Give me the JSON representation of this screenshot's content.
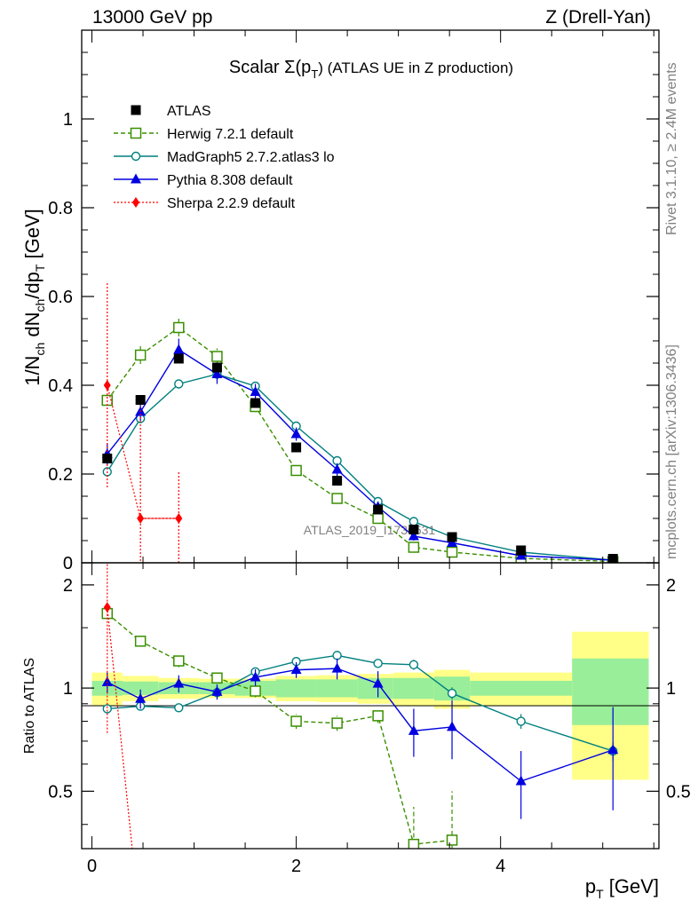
{
  "header": {
    "left": "13000 GeV pp",
    "right": "Z (Drell-Yan)"
  },
  "side_labels": {
    "rivet": "Rivet 3.1.10, ≥ 2.4M events",
    "mcplots": "mcplots.cern.ch [arXiv:1306.3436]"
  },
  "colors": {
    "ATLAS": "#000000",
    "Herwig": "#3a8f00",
    "MadGraph": "#00807f",
    "Pythia": "#0000e0",
    "Sherpa": "#ff0000",
    "band_inner": "#99ee99",
    "band_outer": "#ffff88"
  },
  "chart_data": [
    {
      "type": "line",
      "title_prefix": "Scalar Σ(p",
      "title_sub": "T",
      "title_suffix": ") (ATLAS UE in Z production)",
      "ylabel": "1/N_ch dN_ch/dp_T [GeV]",
      "watermark": "ATLAS_2019_I1736531",
      "xlim": [
        -0.1,
        5.55
      ],
      "ylim": [
        0,
        1.2
      ],
      "yticks": [
        0,
        0.2,
        0.4,
        0.6,
        0.8,
        1
      ],
      "ytick_labels": [
        "0",
        "0.2",
        "0.4",
        "0.6",
        "0.8",
        "1"
      ],
      "legend_position": "top-left",
      "series": [
        {
          "name": "ATLAS",
          "x": [
            0.15,
            0.475,
            0.85,
            1.225,
            1.6,
            2.0,
            2.4,
            2.8,
            3.15,
            3.525,
            4.2,
            5.1
          ],
          "y": [
            0.235,
            0.367,
            0.46,
            0.44,
            0.36,
            0.26,
            0.185,
            0.12,
            0.075,
            0.058,
            0.028,
            0.009
          ]
        },
        {
          "name": "Herwig 7.2.1 default",
          "x": [
            0.15,
            0.475,
            0.85,
            1.225,
            1.6,
            2.0,
            2.4,
            2.8,
            3.15,
            3.525,
            4.2,
            5.1
          ],
          "y": [
            0.366,
            0.468,
            0.53,
            0.465,
            0.352,
            0.208,
            0.145,
            0.1,
            0.035,
            0.024,
            0.01,
            0.003
          ],
          "err": [
            0.012,
            0.02,
            0.02,
            0.018,
            0.012,
            0.01,
            0.008,
            0.008,
            0.005,
            0.005,
            0.003,
            0.002
          ]
        },
        {
          "name": "MadGraph5 2.7.2.atlas3 lo",
          "x": [
            0.15,
            0.475,
            0.85,
            1.225,
            1.6,
            2.0,
            2.4,
            2.8,
            3.15,
            3.525,
            4.2,
            5.1
          ],
          "y": [
            0.205,
            0.325,
            0.403,
            0.425,
            0.398,
            0.308,
            0.23,
            0.138,
            0.093,
            0.058,
            0.024,
            0.006
          ],
          "err": [
            0.005,
            0.006,
            0.008,
            0.008,
            0.008,
            0.006,
            0.005,
            0.005,
            0.004,
            0.003,
            0.002,
            0.001
          ]
        },
        {
          "name": "Pythia 8.308 default",
          "x": [
            0.15,
            0.475,
            0.85,
            1.225,
            1.6,
            2.0,
            2.4,
            2.8,
            3.15,
            3.525,
            4.2,
            5.1
          ],
          "y": [
            0.245,
            0.34,
            0.48,
            0.425,
            0.385,
            0.29,
            0.21,
            0.126,
            0.06,
            0.045,
            0.016,
            0.006
          ],
          "err": [
            0.025,
            0.02,
            0.025,
            0.022,
            0.018,
            0.015,
            0.014,
            0.012,
            0.01,
            0.008,
            0.005,
            0.003
          ]
        },
        {
          "name": "Sherpa 2.2.9 default",
          "x": [
            0.15,
            0.475,
            0.85
          ],
          "y": [
            0.4,
            0.1,
            0.1
          ],
          "ylo": [
            0.17,
            -0.1,
            0.0
          ],
          "yhi": [
            0.63,
            0.35,
            0.205
          ]
        }
      ]
    },
    {
      "type": "line",
      "ylabel": "Ratio to ATLAS",
      "xlabel": "p_T [GeV]",
      "xlim": [
        -0.1,
        5.55
      ],
      "ylim": [
        0.34,
        2.32
      ],
      "xticks": [
        0,
        2,
        4
      ],
      "xtick_labels": [
        "0",
        "2",
        "4"
      ],
      "yticks": [
        0.5,
        1,
        2
      ],
      "ytick_labels": [
        "0.5",
        "1",
        "2"
      ],
      "bins": [
        [
          0.0,
          0.3
        ],
        [
          0.3,
          0.65
        ],
        [
          0.65,
          1.05
        ],
        [
          1.05,
          1.4
        ],
        [
          1.4,
          1.8
        ],
        [
          1.8,
          2.2
        ],
        [
          2.2,
          2.6
        ],
        [
          2.6,
          2.95
        ],
        [
          2.95,
          3.35
        ],
        [
          3.35,
          3.7
        ],
        [
          3.7,
          4.7
        ],
        [
          4.7,
          5.45
        ]
      ],
      "band_inner": [
        0.05,
        0.045,
        0.04,
        0.04,
        0.05,
        0.06,
        0.06,
        0.07,
        0.07,
        0.08,
        0.05,
        0.22
      ],
      "band_outer": [
        0.11,
        0.085,
        0.07,
        0.065,
        0.065,
        0.085,
        0.09,
        0.1,
        0.11,
        0.13,
        0.11,
        0.46
      ],
      "series": [
        {
          "name": "Herwig 7.2.1 default",
          "x": [
            0.15,
            0.475,
            0.85,
            1.225,
            1.6,
            2.0,
            2.4,
            2.8,
            3.15,
            3.525
          ],
          "y": [
            1.65,
            1.37,
            1.2,
            1.07,
            0.98,
            0.8,
            0.79,
            0.83,
            0.35,
            0.36
          ],
          "err": [
            0.05,
            0.05,
            0.05,
            0.04,
            0.04,
            0.04,
            0.04,
            0.04,
            0.1,
            0.14
          ]
        },
        {
          "name": "MadGraph5 2.7.2.atlas3 lo",
          "x": [
            0.15,
            0.475,
            0.85,
            1.225,
            1.6,
            2.0,
            2.4,
            2.8,
            3.15,
            3.525,
            4.2,
            5.1
          ],
          "y": [
            0.87,
            0.885,
            0.876,
            0.97,
            1.115,
            1.195,
            1.245,
            1.18,
            1.17,
            0.965,
            0.8,
            0.655
          ],
          "err": [
            0.025,
            0.025,
            0.02,
            0.02,
            0.025,
            0.025,
            0.03,
            0.03,
            0.04,
            0.04,
            0.04,
            0.04
          ]
        },
        {
          "name": "Pythia 8.308 default",
          "x": [
            0.15,
            0.475,
            0.85,
            1.225,
            1.6,
            2.0,
            2.4,
            2.8,
            3.15,
            3.525,
            4.2,
            5.1
          ],
          "y": [
            1.04,
            0.93,
            1.03,
            0.975,
            1.075,
            1.13,
            1.14,
            1.03,
            0.75,
            0.77,
            0.535,
            0.66
          ],
          "err": [
            0.07,
            0.06,
            0.06,
            0.05,
            0.06,
            0.06,
            0.08,
            0.09,
            0.12,
            0.15,
            0.12,
            0.22
          ]
        },
        {
          "name": "Sherpa 2.2.9 default",
          "x": [
            0.15,
            0.475
          ],
          "y": [
            1.72,
            0.2
          ],
          "ylo": [
            0.74,
            0.2
          ],
          "yhi": [
            2.8,
            0.2
          ]
        }
      ]
    }
  ]
}
